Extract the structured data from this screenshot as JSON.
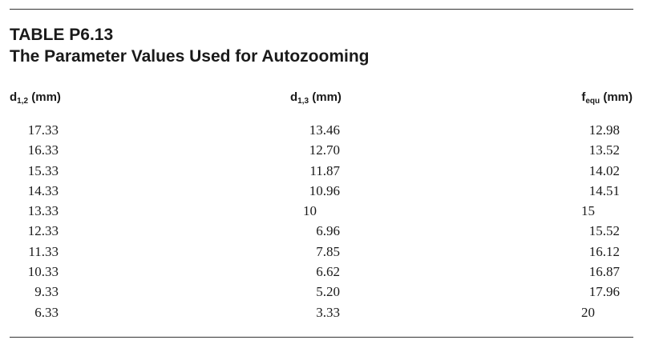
{
  "table": {
    "label": "TABLE P6.13",
    "title": "The Parameter Values Used for Autozooming",
    "headers": [
      {
        "base": "d",
        "sub": "1,2",
        "unit": "(mm)"
      },
      {
        "base": "d",
        "sub": "1,3",
        "unit": "(mm)"
      },
      {
        "base": "f",
        "sub": "equ",
        "unit": "(mm)"
      }
    ],
    "rows": [
      [
        "17.33",
        "13.46",
        "12.98"
      ],
      [
        "16.33",
        "12.70",
        "13.52"
      ],
      [
        "15.33",
        "11.87",
        "14.02"
      ],
      [
        "14.33",
        "10.96",
        "14.51"
      ],
      [
        "13.33",
        "10",
        "15"
      ],
      [
        "12.33",
        "6.96",
        "15.52"
      ],
      [
        "11.33",
        "7.85",
        "16.12"
      ],
      [
        "10.33",
        "6.62",
        "16.87"
      ],
      [
        "9.33",
        "5.20",
        "17.96"
      ],
      [
        "6.33",
        "3.33",
        "20"
      ]
    ]
  }
}
